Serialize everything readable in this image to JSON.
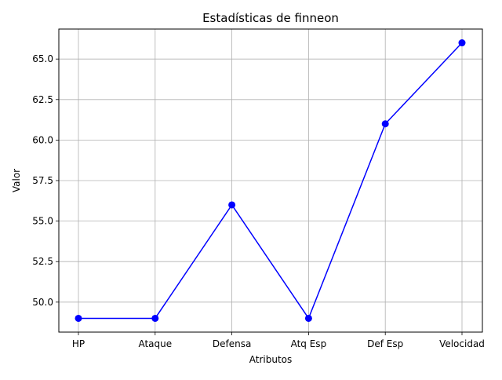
{
  "chart_data": {
    "type": "line",
    "title": "Estadísticas de finneon",
    "xlabel": "Atributos",
    "ylabel": "Valor",
    "categories": [
      "HP",
      "Ataque",
      "Defensa",
      "Atq Esp",
      "Def Esp",
      "Velocidad"
    ],
    "series": [
      {
        "values": [
          49,
          49,
          56,
          49,
          61,
          66
        ],
        "color": "#0000ff",
        "marker": "circle"
      }
    ],
    "ylim": [
      48.15,
      66.85
    ],
    "yticks": [
      50.0,
      52.5,
      55.0,
      57.5,
      60.0,
      62.5,
      65.0
    ],
    "ytick_labels": [
      "50.0",
      "52.5",
      "55.0",
      "57.5",
      "60.0",
      "62.5",
      "65.0"
    ],
    "grid": true
  }
}
